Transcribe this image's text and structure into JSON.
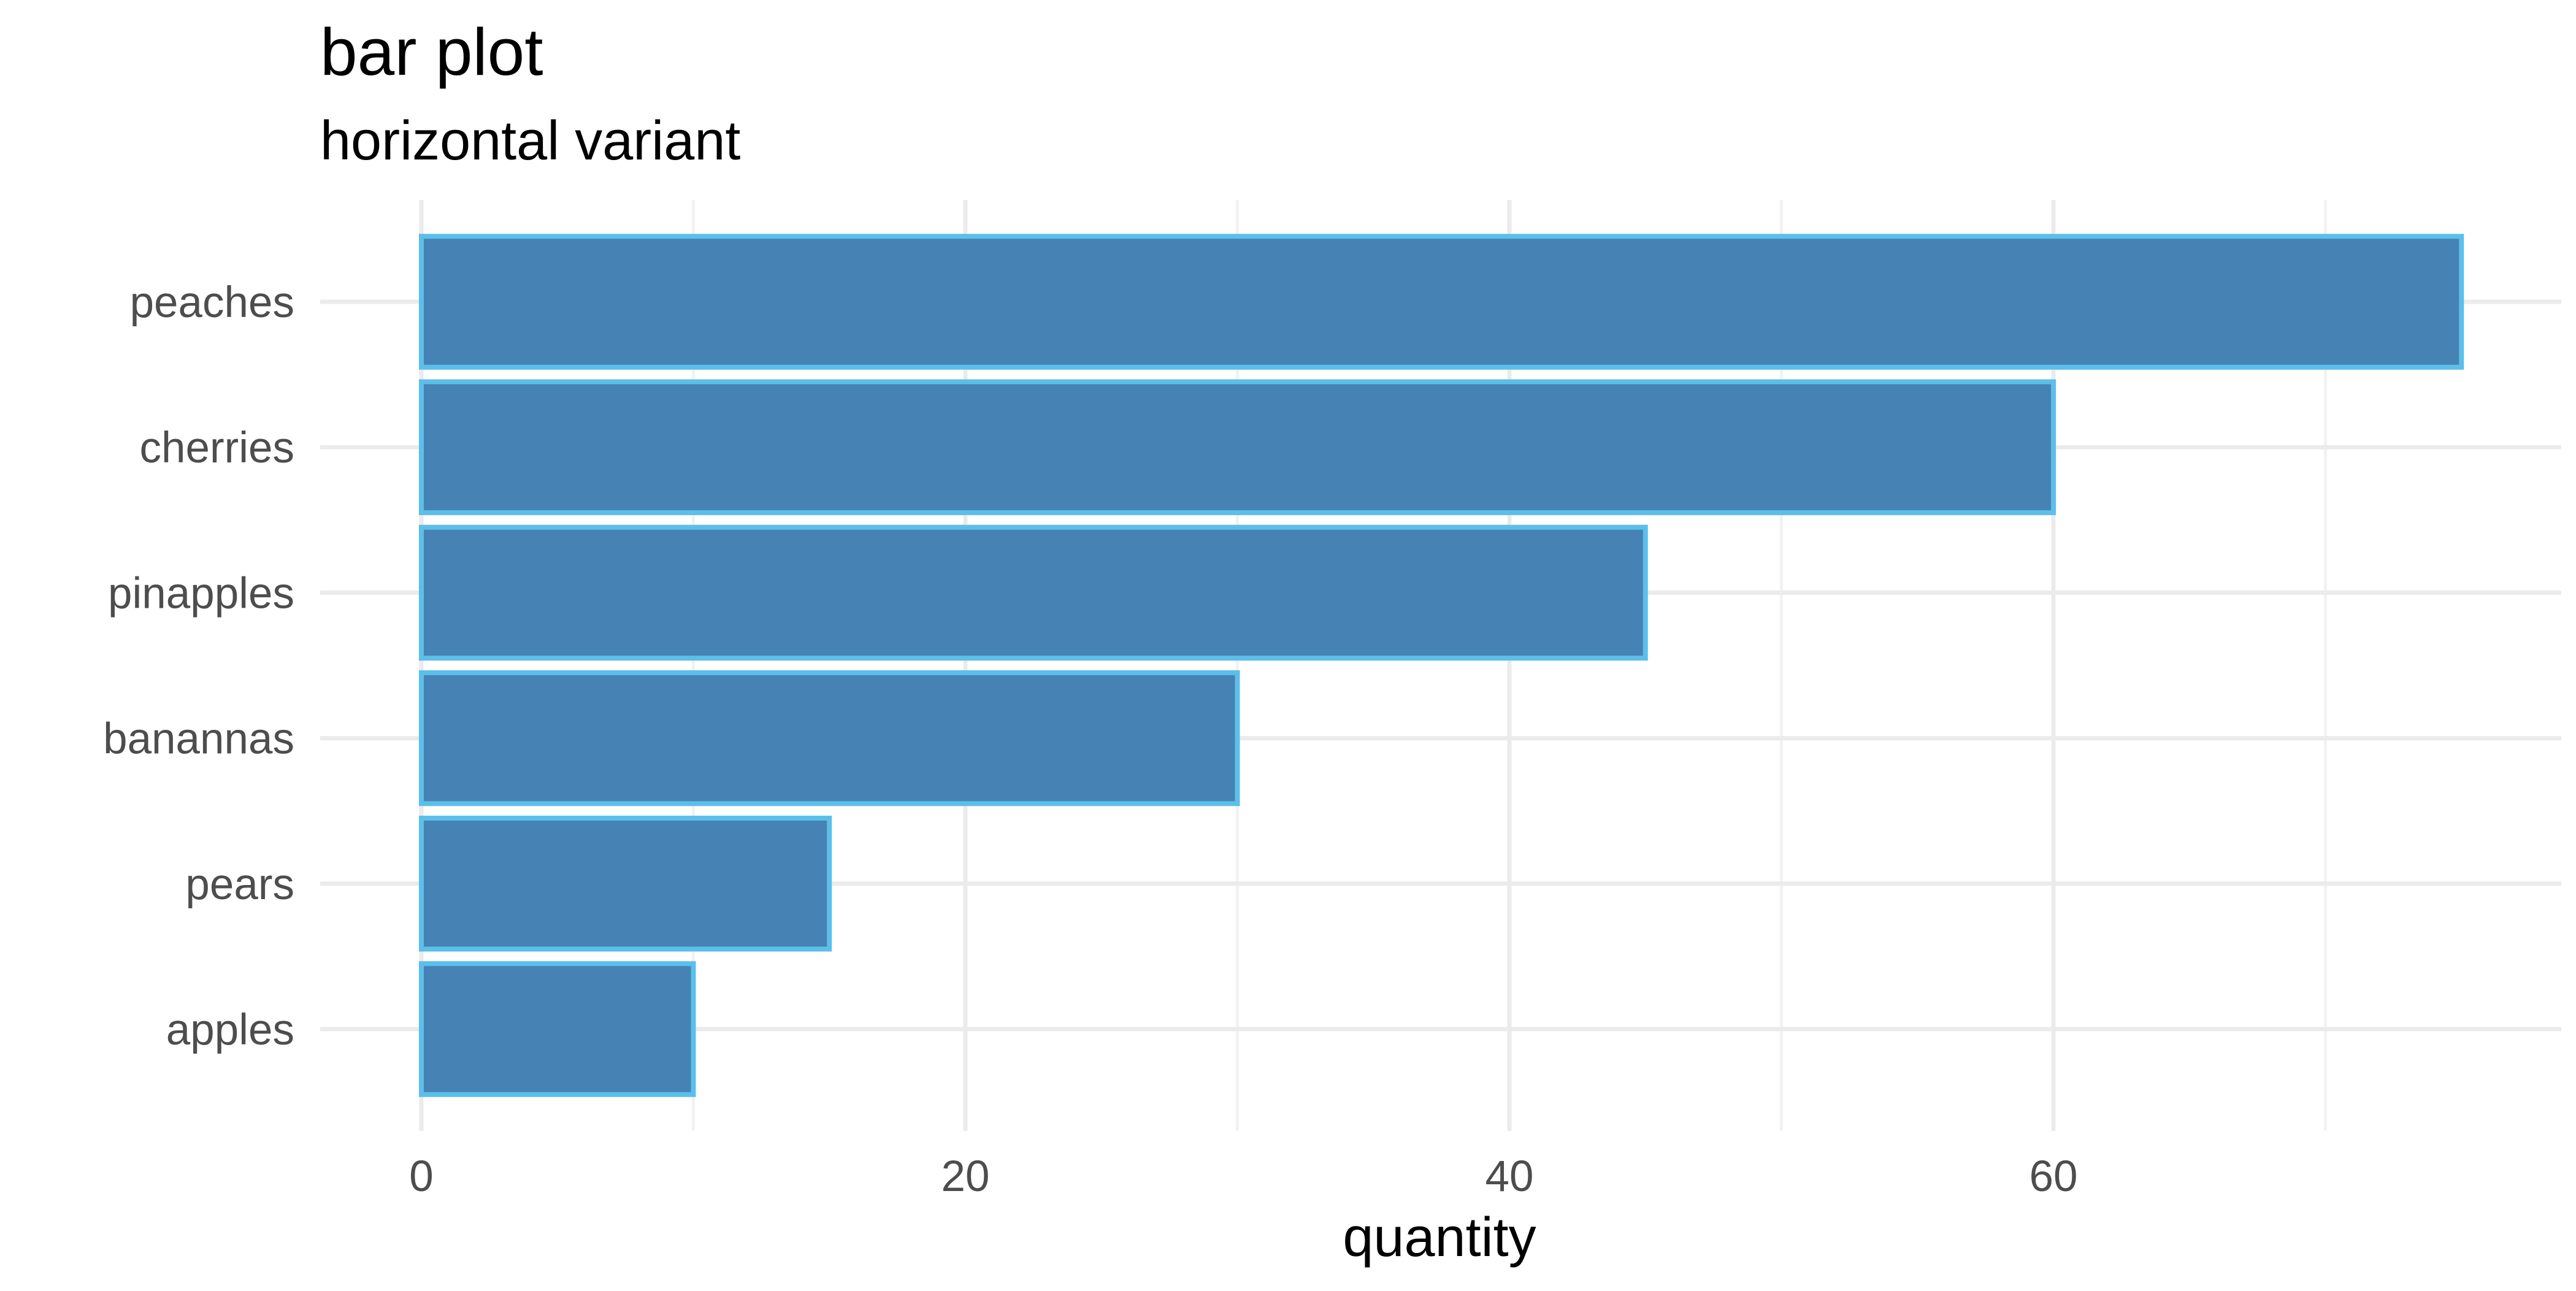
{
  "chart_data": {
    "type": "bar",
    "orientation": "horizontal",
    "title": "bar plot",
    "subtitle": "horizontal variant",
    "xlabel": "quantity",
    "ylabel": "",
    "categories": [
      "apples",
      "pears",
      "banannas",
      "pinapples",
      "cherries",
      "peaches"
    ],
    "values": [
      10,
      15,
      30,
      45,
      60,
      75
    ],
    "xlim": [
      0,
      79
    ],
    "x_ticks": [
      0,
      20,
      40,
      60
    ],
    "x_tick_labels": [
      "0",
      "20",
      "40",
      "60"
    ],
    "grid": true,
    "legend": "none",
    "colors": {
      "bar_fill": "#4682B4",
      "bar_outline": "#5BBFEA",
      "grid_major": "#EBEBEB",
      "grid_minor": "#F2F2F2",
      "tick_label": "#4D4D4D",
      "text": "#000000"
    }
  }
}
